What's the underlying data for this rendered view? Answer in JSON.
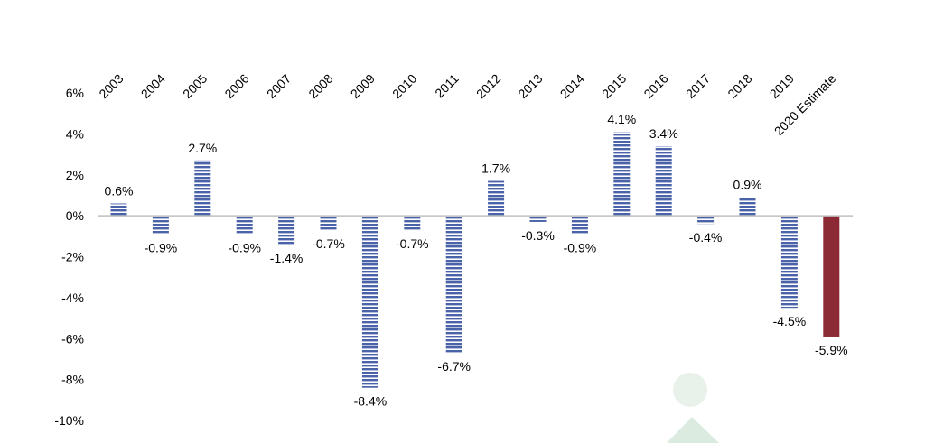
{
  "chart_data": {
    "type": "bar",
    "categories": [
      "2003",
      "2004",
      "2005",
      "2006",
      "2007",
      "2008",
      "2009",
      "2010",
      "2011",
      "2012",
      "2013",
      "2014",
      "2015",
      "2016",
      "2017",
      "2018",
      "2019",
      "2020 Estimate"
    ],
    "values": [
      0.6,
      -0.9,
      2.7,
      -0.9,
      -1.4,
      -0.7,
      -8.4,
      -0.7,
      -6.7,
      1.7,
      -0.3,
      -0.9,
      4.1,
      3.4,
      -0.4,
      0.9,
      -4.5,
      -5.9
    ],
    "data_labels": [
      "0.6%",
      "-0.9%",
      "2.7%",
      "-0.9%",
      "-1.4%",
      "-0.7%",
      "-8.4%",
      "-0.7%",
      "-6.7%",
      "1.7%",
      "-0.3%",
      "-0.9%",
      "4.1%",
      "3.4%",
      "-0.4%",
      "0.9%",
      "-4.5%",
      "-5.9%"
    ],
    "yticks": [
      "6%",
      "4%",
      "2%",
      "0%",
      "-2%",
      "-4%",
      "-6%",
      "-8%",
      "-10%"
    ],
    "ylim": [
      -10,
      6
    ],
    "grid": false,
    "legend": "none",
    "colors": {
      "bar": "#4a63a8",
      "bar_stripe": "#ffffff",
      "highlight_bar": "#8b2a35",
      "axis": "#bfbfbf"
    },
    "highlight_index": 17
  }
}
